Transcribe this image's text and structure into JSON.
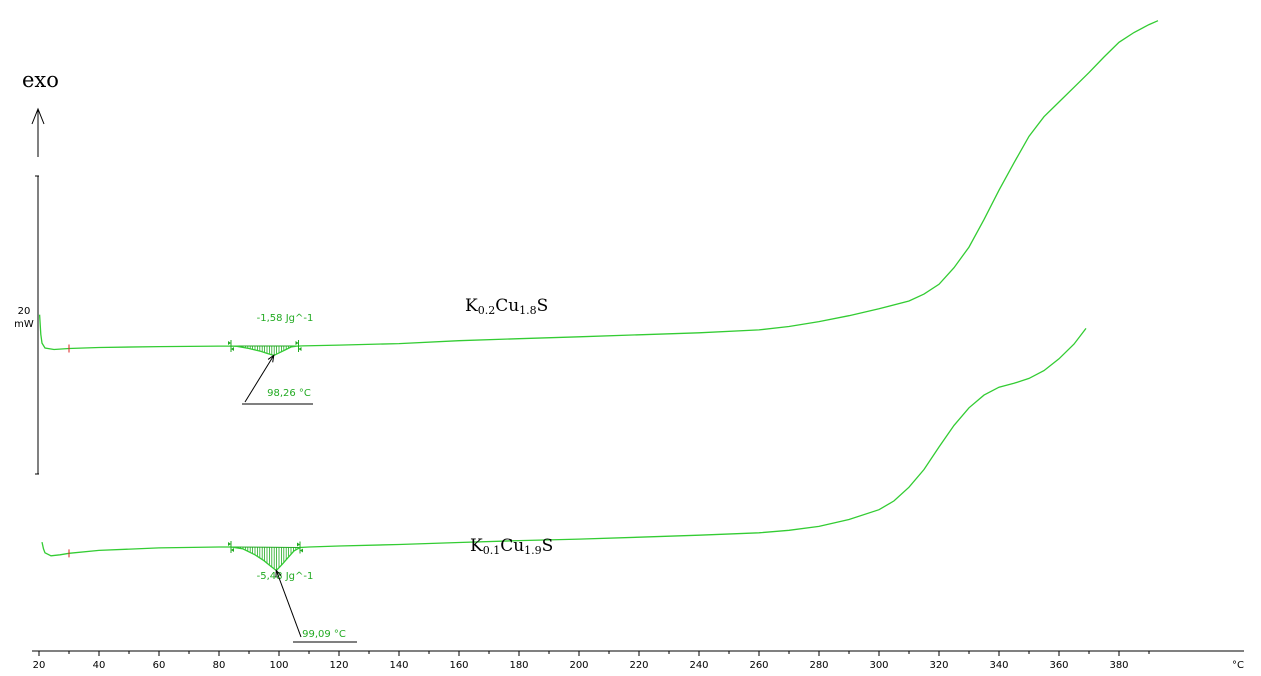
{
  "colors": {
    "curve": "#33cc33",
    "annotation": "#22aa22",
    "axis": "#000000",
    "marker": "#dd2222"
  },
  "chart_data": {
    "type": "line",
    "title": "",
    "xlabel": "",
    "ylabel": "",
    "x_unit": "°C",
    "xlim": [
      20,
      395
    ],
    "x_ticks": [
      20,
      40,
      60,
      80,
      100,
      120,
      140,
      160,
      180,
      200,
      220,
      240,
      260,
      280,
      300,
      320,
      340,
      360,
      380
    ],
    "y_axis": {
      "direction_label": "exo",
      "scale_value": "20",
      "scale_unit": "mW"
    },
    "grid": false,
    "legend": "none",
    "series": [
      {
        "name": "K0.2Cu1.8S",
        "label_parts": [
          "K",
          "0.2",
          "Cu",
          "1.8",
          "S"
        ],
        "y_offset_mw": 0,
        "points": [
          [
            20.2,
            3.5
          ],
          [
            20.6,
            1.5
          ],
          [
            21.0,
            0.6
          ],
          [
            22,
            0.1
          ],
          [
            25,
            -0.05
          ],
          [
            30,
            0.05
          ],
          [
            40,
            0.15
          ],
          [
            60,
            0.25
          ],
          [
            80,
            0.3
          ],
          [
            84,
            0.3
          ],
          [
            86,
            0.28
          ],
          [
            90,
            0.05
          ],
          [
            94,
            -0.25
          ],
          [
            96,
            -0.45
          ],
          [
            98.26,
            -0.65
          ],
          [
            100,
            -0.4
          ],
          [
            102,
            -0.1
          ],
          [
            104,
            0.2
          ],
          [
            106,
            0.3
          ],
          [
            108,
            0.32
          ],
          [
            120,
            0.4
          ],
          [
            140,
            0.55
          ],
          [
            160,
            0.85
          ],
          [
            180,
            1.05
          ],
          [
            200,
            1.25
          ],
          [
            220,
            1.45
          ],
          [
            240,
            1.65
          ],
          [
            260,
            1.95
          ],
          [
            270,
            2.3
          ],
          [
            280,
            2.8
          ],
          [
            290,
            3.4
          ],
          [
            300,
            4.1
          ],
          [
            310,
            4.9
          ],
          [
            315,
            5.6
          ],
          [
            320,
            6.6
          ],
          [
            325,
            8.3
          ],
          [
            330,
            10.4
          ],
          [
            335,
            13.2
          ],
          [
            340,
            16.2
          ],
          [
            345,
            19.0
          ],
          [
            350,
            21.7
          ],
          [
            355,
            23.7
          ],
          [
            360,
            25.2
          ],
          [
            365,
            26.7
          ],
          [
            370,
            28.2
          ],
          [
            375,
            29.8
          ],
          [
            380,
            31.3
          ],
          [
            385,
            32.3
          ],
          [
            390,
            33.1
          ],
          [
            393,
            33.5
          ]
        ],
        "peak": {
          "temperature": 98.26,
          "temperature_label": "98,26 °C",
          "enthalpy": -1.58,
          "enthalpy_label": "-1,58 Jg^-1",
          "integration_range": [
            84,
            106.5
          ]
        }
      },
      {
        "name": "K0.1Cu1.9S",
        "label_parts": [
          "K",
          "0.1",
          "Cu",
          "1.9",
          "S"
        ],
        "y_offset_mw": -20.5,
        "points": [
          [
            21.0,
            0.8
          ],
          [
            21.5,
            0.1
          ],
          [
            22,
            -0.3
          ],
          [
            24,
            -0.6
          ],
          [
            27,
            -0.5
          ],
          [
            30,
            -0.35
          ],
          [
            40,
            -0.05
          ],
          [
            60,
            0.2
          ],
          [
            80,
            0.3
          ],
          [
            84,
            0.3
          ],
          [
            88,
            0.1
          ],
          [
            92,
            -0.5
          ],
          [
            95,
            -1.1
          ],
          [
            97,
            -1.6
          ],
          [
            99.09,
            -2.1
          ],
          [
            101,
            -1.5
          ],
          [
            103,
            -0.8
          ],
          [
            105,
            -0.1
          ],
          [
            107,
            0.25
          ],
          [
            110,
            0.3
          ],
          [
            120,
            0.4
          ],
          [
            140,
            0.55
          ],
          [
            160,
            0.75
          ],
          [
            180,
            0.95
          ],
          [
            200,
            1.1
          ],
          [
            220,
            1.3
          ],
          [
            240,
            1.5
          ],
          [
            260,
            1.75
          ],
          [
            270,
            2.0
          ],
          [
            280,
            2.4
          ],
          [
            290,
            3.1
          ],
          [
            300,
            4.1
          ],
          [
            305,
            5.0
          ],
          [
            310,
            6.4
          ],
          [
            315,
            8.2
          ],
          [
            320,
            10.5
          ],
          [
            325,
            12.7
          ],
          [
            330,
            14.5
          ],
          [
            335,
            15.8
          ],
          [
            340,
            16.6
          ],
          [
            345,
            17.0
          ],
          [
            350,
            17.5
          ],
          [
            355,
            18.3
          ],
          [
            360,
            19.5
          ],
          [
            365,
            21.0
          ],
          [
            369,
            22.6
          ]
        ],
        "peak": {
          "temperature": 99.09,
          "temperature_label": "99,09 °C",
          "enthalpy": -5.48,
          "enthalpy_label": "-5,48 Jg^-1",
          "integration_range": [
            84,
            107
          ]
        }
      }
    ]
  }
}
